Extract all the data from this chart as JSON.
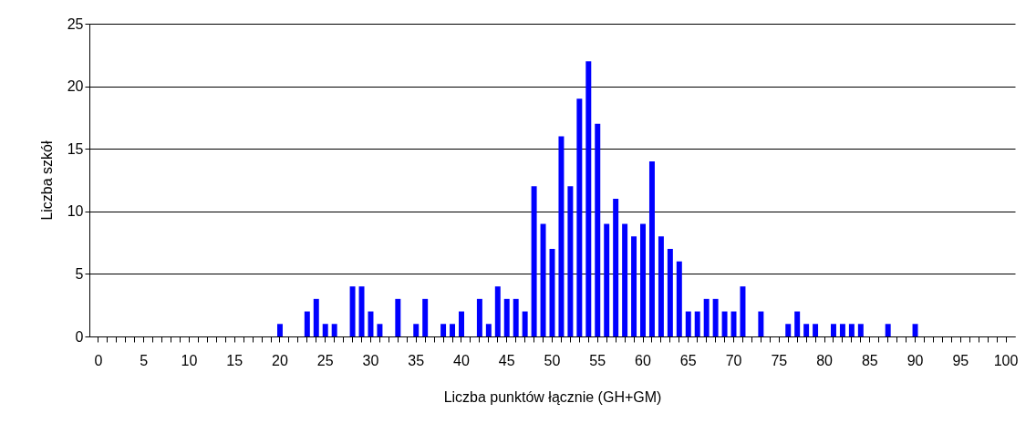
{
  "chart_data": {
    "type": "bar",
    "xlabel": "Liczba punktów łącznie (GH+GM)",
    "ylabel": "Liczba szkół",
    "categories": [
      "0",
      null,
      null,
      null,
      null,
      "5",
      null,
      null,
      null,
      null,
      "10",
      null,
      null,
      null,
      null,
      "15",
      null,
      null,
      null,
      null,
      "20",
      null,
      null,
      null,
      null,
      "25",
      null,
      null,
      null,
      null,
      "30",
      null,
      null,
      null,
      null,
      "35",
      null,
      null,
      null,
      null,
      "40",
      null,
      null,
      null,
      null,
      "45",
      null,
      null,
      null,
      null,
      "50",
      null,
      null,
      null,
      null,
      "55",
      null,
      null,
      null,
      null,
      "60",
      null,
      null,
      null,
      null,
      "65",
      null,
      null,
      null,
      null,
      "70",
      null,
      null,
      null,
      null,
      "75",
      null,
      null,
      null,
      null,
      "80",
      null,
      null,
      null,
      null,
      "85",
      null,
      null,
      null,
      null,
      "90",
      null,
      null,
      null,
      null,
      "95",
      null,
      null,
      null,
      null,
      "100"
    ],
    "values": [
      0,
      0,
      0,
      0,
      0,
      0,
      0,
      0,
      0,
      0,
      0,
      0,
      0,
      0,
      0,
      0,
      0,
      0,
      0,
      0,
      1,
      0,
      0,
      2,
      3,
      1,
      1,
      0,
      4,
      4,
      2,
      1,
      0,
      3,
      0,
      1,
      3,
      0,
      1,
      1,
      2,
      0,
      3,
      1,
      4,
      3,
      3,
      2,
      12,
      9,
      7,
      16,
      12,
      19,
      22,
      17,
      9,
      11,
      9,
      8,
      9,
      14,
      8,
      7,
      6,
      2,
      2,
      3,
      3,
      2,
      2,
      4,
      0,
      2,
      0,
      0,
      1,
      2,
      1,
      1,
      0,
      1,
      1,
      1,
      1,
      0,
      0,
      1,
      0,
      0,
      1,
      0,
      0,
      0,
      0,
      0,
      0,
      0,
      0,
      0,
      0
    ],
    "color": "#0000ff",
    "ylim": [
      0,
      25
    ],
    "yticks": [
      0,
      5,
      10,
      15,
      20,
      25
    ],
    "grid": "y"
  }
}
